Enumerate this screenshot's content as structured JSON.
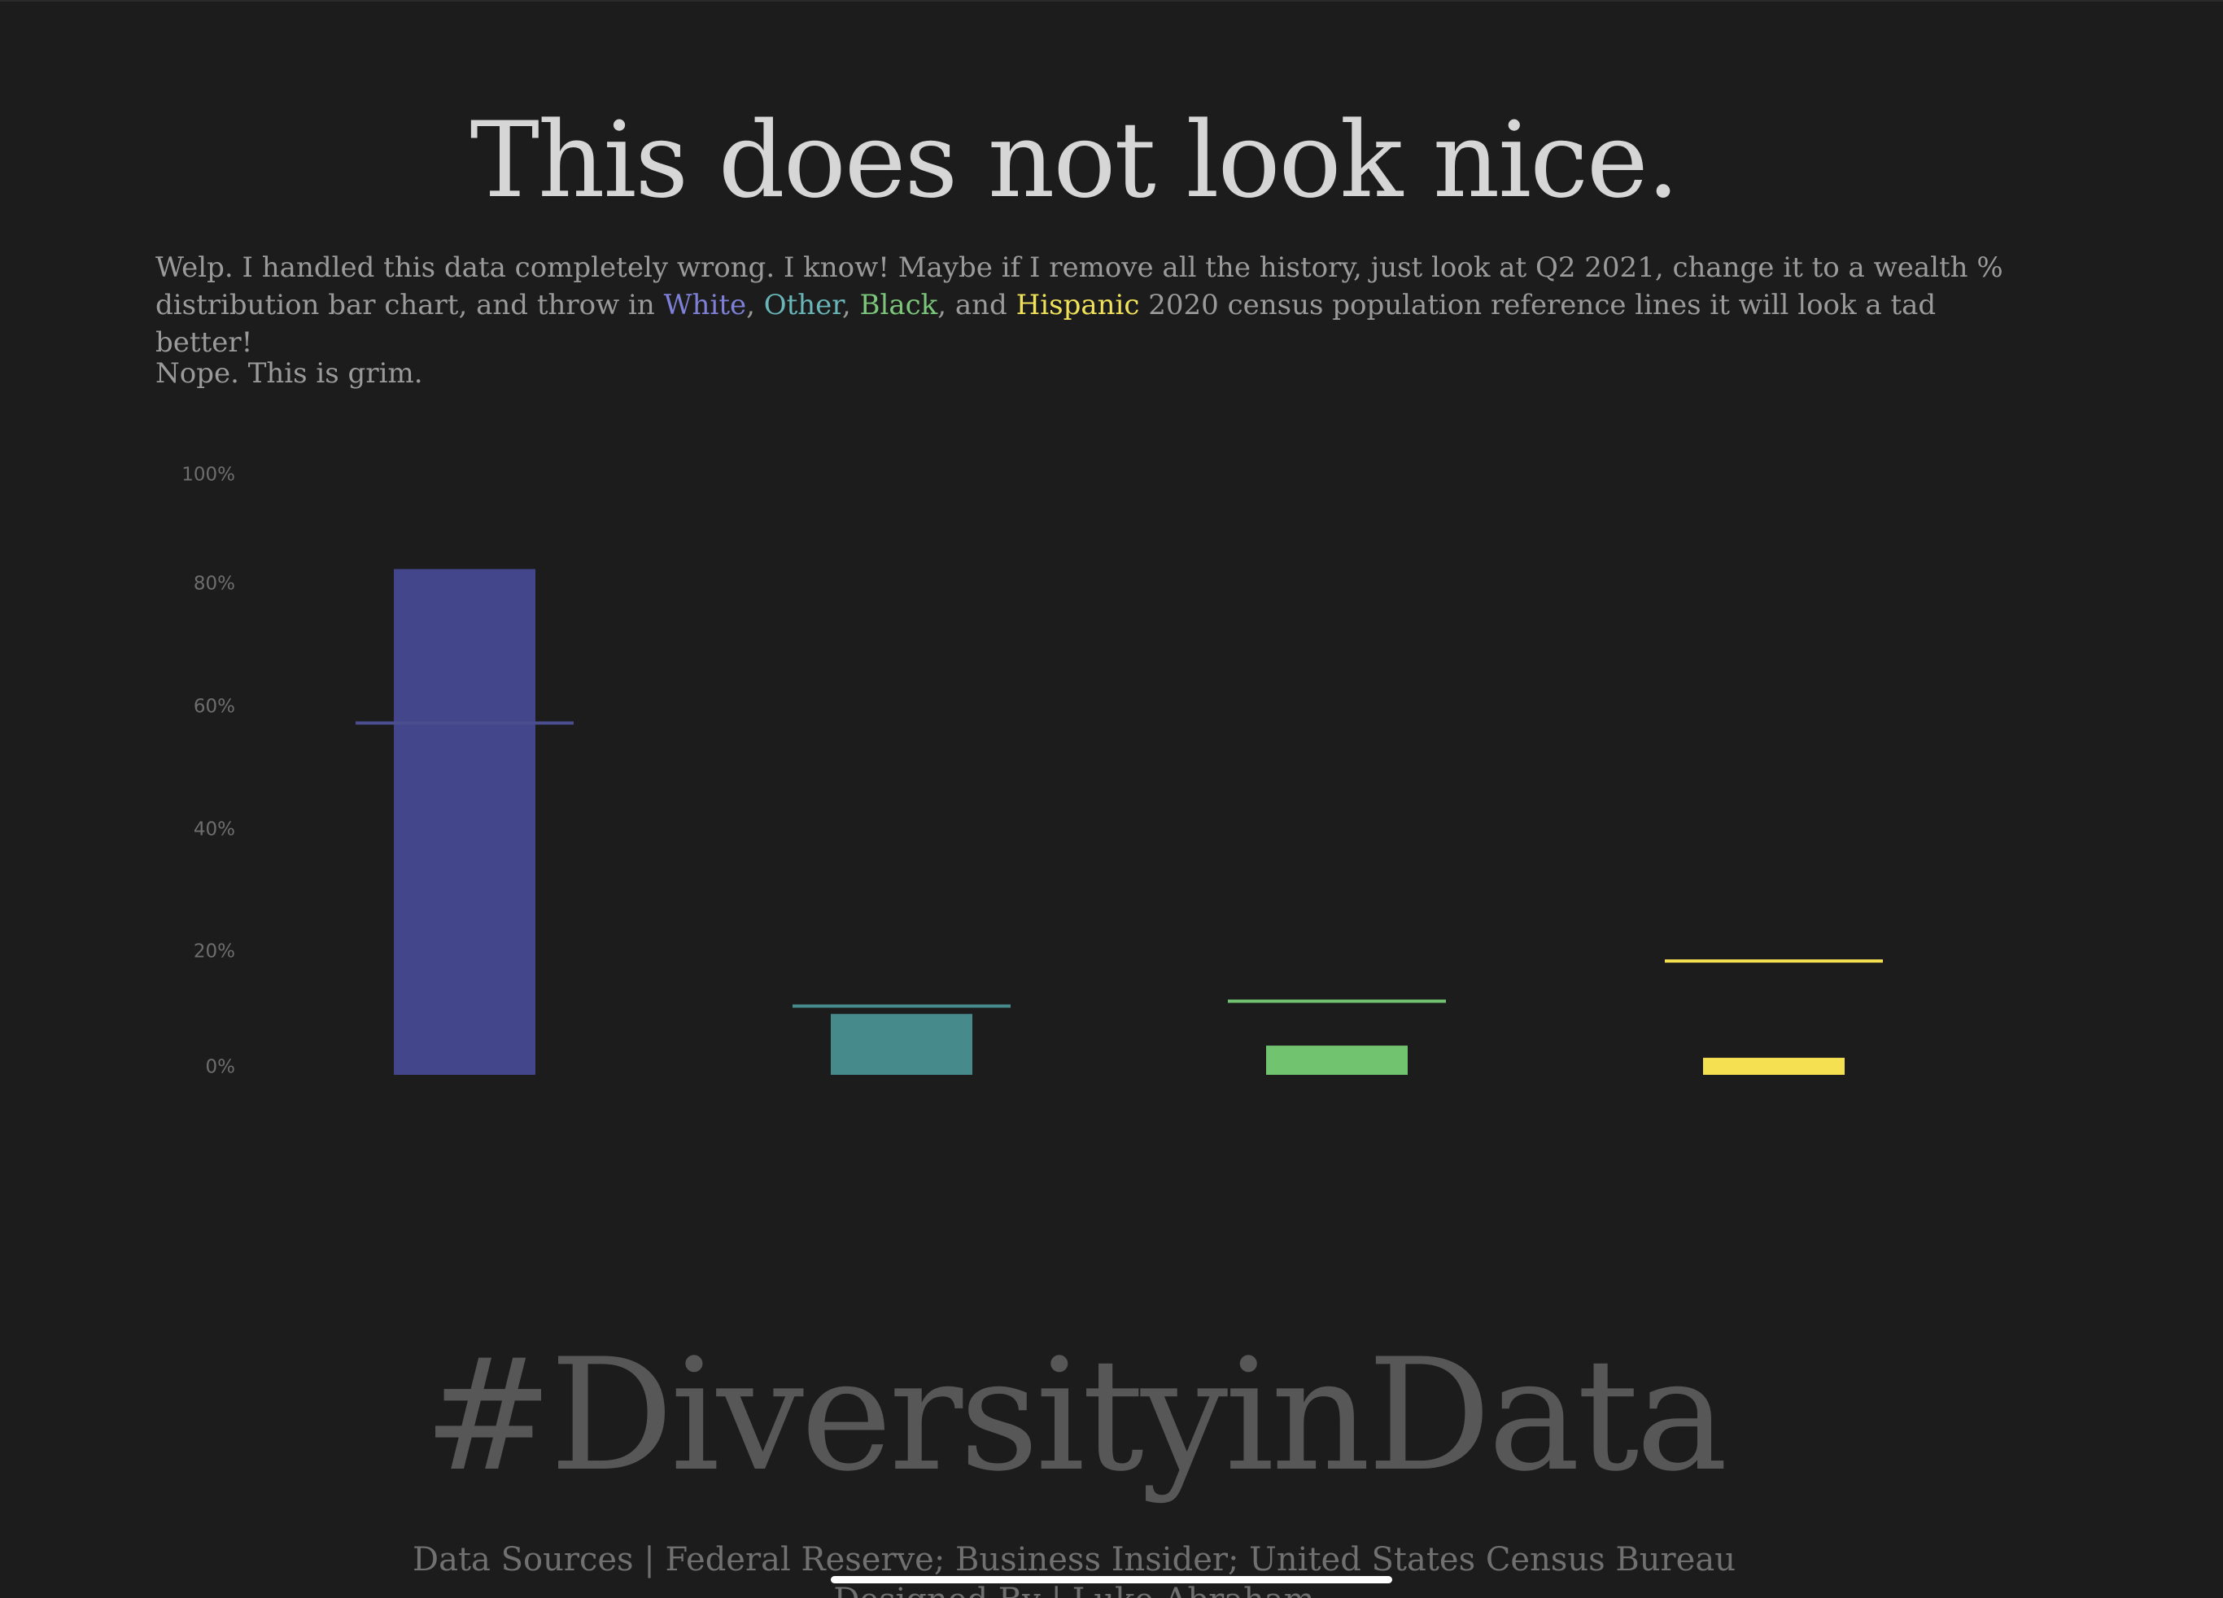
{
  "title": "This does not look nice.",
  "intro": {
    "part1": "Welp. I handled this data completely wrong. I know! Maybe if I remove all the history, just look at Q2 2021, change it to a wealth % distribution bar chart, and throw in ",
    "white": "White",
    "sep1": ", ",
    "other": "Other",
    "sep2": ", ",
    "black": "Black",
    "sep3": ", and ",
    "hispanic": "Hispanic",
    "part2": " 2020 census population reference lines it will look a tad better!"
  },
  "intro_second": "Nope. This is grim.",
  "hashtag": "#DiversityinData",
  "sources": "Data Sources | Federal Reserve; Business Insider; United States Census Bureau",
  "designed_by": "Designed By | Luke Abraham",
  "colors": {
    "white": "#43468a",
    "other": "#468a8c",
    "black": "#72c370",
    "hispanic": "#f5e052",
    "white_ref": "#4a4d8e",
    "other_ref": "#468a8c",
    "black_ref": "#72c370",
    "hispanic_ref": "#f5e052"
  },
  "chart_data": {
    "type": "bar",
    "categories": [
      "White",
      "Other",
      "Black",
      "Hispanic"
    ],
    "values": [
      83.1,
      10.0,
      4.8,
      2.8
    ],
    "reference_lines": [
      57.8,
      11.3,
      12.1,
      18.7
    ],
    "ylim": [
      0,
      100
    ],
    "yticks": [
      "0%",
      "20%",
      "40%",
      "60%",
      "80%",
      "100%"
    ],
    "grid": false
  }
}
